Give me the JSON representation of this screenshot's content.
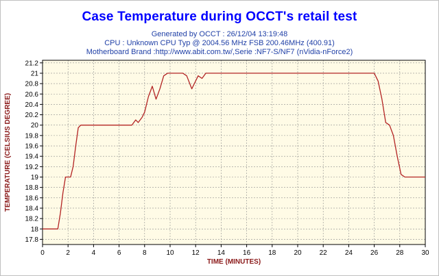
{
  "header": {
    "title": "Case Temperature during OCCT's retail test",
    "line1": "Generated by OCCT : 26/12/04 13:19:48",
    "line2": "CPU : Unknown CPU Typ @ 2004.56 MHz FSB 200.46MHz (400.91)",
    "line3": "Motherboard Brand :http://www.abit.com.tw/,Serie :NF7-S/NF7 (nVidia-nForce2)"
  },
  "colors": {
    "line": "#b22222",
    "plot_bg": "#fffbe6",
    "grid": "#8c8c8c",
    "title": "#0000ff",
    "subtitle": "#1f3fa6",
    "axis_label": "#8b1a1a"
  },
  "chart_data": {
    "type": "line",
    "xlabel": "TIME (MINUTES)",
    "ylabel": "TEMPERATURE (CELSIUS DEGREE)",
    "xlim": [
      0,
      30
    ],
    "ylim": [
      17.7,
      21.25
    ],
    "xticks": [
      0,
      2,
      4,
      6,
      8,
      10,
      12,
      14,
      16,
      18,
      20,
      22,
      24,
      26,
      28,
      30
    ],
    "yticks": [
      17.8,
      18,
      18.2,
      18.4,
      18.6,
      18.8,
      19,
      19.2,
      19.4,
      19.6,
      19.8,
      20,
      20.2,
      20.4,
      20.6,
      20.8,
      21,
      21.2
    ],
    "grid": true,
    "series": [
      {
        "x": [
          0,
          1.2,
          1.4,
          1.6,
          1.8,
          2.0,
          2.2,
          2.4,
          2.6,
          2.8,
          3.0,
          7.0,
          7.3,
          7.5,
          7.8,
          8.0,
          8.3,
          8.6,
          8.9,
          9.2,
          9.5,
          9.8,
          11.0,
          11.3,
          11.7,
          11.9,
          12.2,
          12.5,
          12.8,
          26.0,
          26.3,
          26.6,
          26.9,
          27.2,
          27.5,
          27.8,
          28.1,
          28.4,
          30.0
        ],
        "y": [
          18.0,
          18.0,
          18.3,
          18.7,
          19.0,
          19.0,
          19.0,
          19.2,
          19.6,
          19.95,
          20.0,
          20.0,
          20.1,
          20.05,
          20.15,
          20.25,
          20.55,
          20.75,
          20.5,
          20.7,
          20.95,
          21.0,
          21.0,
          20.95,
          20.7,
          20.8,
          20.95,
          20.9,
          21.0,
          21.0,
          20.85,
          20.5,
          20.05,
          20.0,
          19.8,
          19.4,
          19.05,
          19.0,
          19.0
        ]
      }
    ]
  }
}
